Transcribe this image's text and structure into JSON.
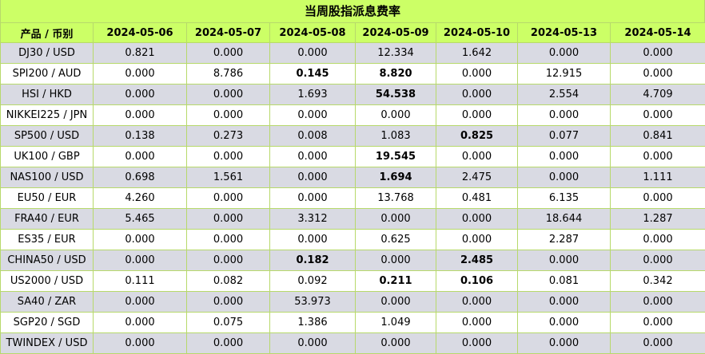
{
  "title": "当周股指派息费率",
  "headers": [
    "产品 / 币别",
    "2024-05-06",
    "2024-05-07",
    "2024-05-08",
    "2024-05-09",
    "2024-05-10",
    "2024-05-13",
    "2024-05-14"
  ],
  "rows": [
    {
      "product": "DJ30 / USD",
      "values": [
        "0.821",
        "0.000",
        "0.000",
        "12.334",
        "1.642",
        "0.000",
        "0.000"
      ],
      "bold": [
        false,
        false,
        false,
        false,
        false,
        false,
        false
      ]
    },
    {
      "product": "SPI200 / AUD",
      "values": [
        "0.000",
        "8.786",
        "0.145",
        "8.820",
        "0.000",
        "12.915",
        "0.000"
      ],
      "bold": [
        false,
        false,
        true,
        true,
        false,
        false,
        false
      ]
    },
    {
      "product": "HSI / HKD",
      "values": [
        "0.000",
        "0.000",
        "1.693",
        "54.538",
        "0.000",
        "2.554",
        "4.709"
      ],
      "bold": [
        false,
        false,
        false,
        true,
        false,
        false,
        false
      ]
    },
    {
      "product": "NIKKEI225 / JPN",
      "values": [
        "0.000",
        "0.000",
        "0.000",
        "0.000",
        "0.000",
        "0.000",
        "0.000"
      ],
      "bold": [
        false,
        false,
        false,
        false,
        false,
        false,
        false
      ]
    },
    {
      "product": "SP500 / USD",
      "values": [
        "0.138",
        "0.273",
        "0.008",
        "1.083",
        "0.825",
        "0.077",
        "0.841"
      ],
      "bold": [
        false,
        false,
        false,
        false,
        true,
        false,
        false
      ]
    },
    {
      "product": "UK100 / GBP",
      "values": [
        "0.000",
        "0.000",
        "0.000",
        "19.545",
        "0.000",
        "0.000",
        "0.000"
      ],
      "bold": [
        false,
        false,
        false,
        true,
        false,
        false,
        false
      ]
    },
    {
      "product": "NAS100 / USD",
      "values": [
        "0.698",
        "1.561",
        "0.000",
        "1.694",
        "2.475",
        "0.000",
        "1.111"
      ],
      "bold": [
        false,
        false,
        false,
        true,
        false,
        false,
        false
      ]
    },
    {
      "product": "EU50 / EUR",
      "values": [
        "4.260",
        "0.000",
        "0.000",
        "13.768",
        "0.481",
        "6.135",
        "0.000"
      ],
      "bold": [
        false,
        false,
        false,
        false,
        false,
        false,
        false
      ]
    },
    {
      "product": "FRA40 / EUR",
      "values": [
        "5.465",
        "0.000",
        "3.312",
        "0.000",
        "0.000",
        "18.644",
        "1.287"
      ],
      "bold": [
        false,
        false,
        false,
        false,
        false,
        false,
        false
      ]
    },
    {
      "product": "ES35 / EUR",
      "values": [
        "0.000",
        "0.000",
        "0.000",
        "0.625",
        "0.000",
        "2.287",
        "0.000"
      ],
      "bold": [
        false,
        false,
        false,
        false,
        false,
        false,
        false
      ]
    },
    {
      "product": "CHINA50 / USD",
      "values": [
        "0.000",
        "0.000",
        "0.182",
        "0.000",
        "2.485",
        "0.000",
        "0.000"
      ],
      "bold": [
        false,
        false,
        true,
        false,
        true,
        false,
        false
      ]
    },
    {
      "product": "US2000 / USD",
      "values": [
        "0.111",
        "0.082",
        "0.092",
        "0.211",
        "0.106",
        "0.081",
        "0.342"
      ],
      "bold": [
        false,
        false,
        false,
        true,
        true,
        false,
        false
      ]
    },
    {
      "product": "SA40 / ZAR",
      "values": [
        "0.000",
        "0.000",
        "53.973",
        "0.000",
        "0.000",
        "0.000",
        "0.000"
      ],
      "bold": [
        false,
        false,
        false,
        false,
        false,
        false,
        false
      ]
    },
    {
      "product": "SGP20 / SGD",
      "values": [
        "0.000",
        "0.075",
        "1.386",
        "1.049",
        "0.000",
        "0.000",
        "0.000"
      ],
      "bold": [
        false,
        false,
        false,
        false,
        false,
        false,
        false
      ]
    },
    {
      "product": "TWINDEX / USD",
      "values": [
        "0.000",
        "0.000",
        "0.000",
        "0.000",
        "0.000",
        "0.000",
        "0.000"
      ],
      "bold": [
        false,
        false,
        false,
        false,
        false,
        false,
        false
      ]
    }
  ],
  "colors": {
    "header_bg": "#ccff66",
    "odd_row_bg": "#d9dae3",
    "even_row_bg": "#ffffff",
    "border": "#b7d96b"
  }
}
